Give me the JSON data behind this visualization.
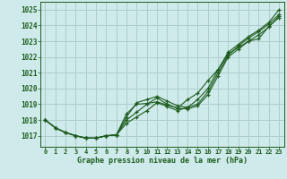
{
  "title": "Graphe pression niveau de la mer (hPa)",
  "background_color": "#ceeaea",
  "grid_color": "#aecece",
  "line_color": "#1e5c1e",
  "x_ticks": [
    0,
    1,
    2,
    3,
    4,
    5,
    6,
    7,
    8,
    9,
    10,
    11,
    12,
    13,
    14,
    15,
    16,
    17,
    18,
    19,
    20,
    21,
    22,
    23
  ],
  "ylim": [
    1016.3,
    1025.5
  ],
  "y_ticks": [
    1017,
    1018,
    1019,
    1020,
    1021,
    1022,
    1023,
    1024,
    1025
  ],
  "series": [
    [
      1018.0,
      1017.5,
      1017.2,
      1017.0,
      1016.85,
      1016.85,
      1017.0,
      1017.05,
      1018.4,
      1019.0,
      1019.05,
      1019.15,
      1018.95,
      1018.75,
      1019.3,
      1019.7,
      1020.5,
      1021.2,
      1022.2,
      1022.6,
      1023.0,
      1023.15,
      1023.95,
      1024.5
    ],
    [
      1018.0,
      1017.5,
      1017.2,
      1017.0,
      1016.85,
      1016.85,
      1017.0,
      1017.05,
      1018.2,
      1019.1,
      1019.3,
      1019.5,
      1019.2,
      1018.9,
      1018.8,
      1019.0,
      1019.8,
      1021.0,
      1022.1,
      1022.7,
      1023.2,
      1023.6,
      1024.1,
      1024.7
    ],
    [
      1018.0,
      1017.5,
      1017.2,
      1017.0,
      1016.85,
      1016.85,
      1017.0,
      1017.05,
      1018.0,
      1018.5,
      1019.0,
      1019.4,
      1019.0,
      1018.75,
      1018.7,
      1018.9,
      1019.6,
      1020.8,
      1022.0,
      1022.5,
      1023.0,
      1023.4,
      1023.9,
      1024.6
    ],
    [
      1018.0,
      1017.5,
      1017.2,
      1017.0,
      1016.85,
      1016.85,
      1017.0,
      1017.05,
      1017.8,
      1018.2,
      1018.6,
      1019.1,
      1018.85,
      1018.6,
      1018.8,
      1019.3,
      1020.0,
      1021.2,
      1022.3,
      1022.8,
      1023.3,
      1023.7,
      1024.2,
      1025.0
    ]
  ]
}
